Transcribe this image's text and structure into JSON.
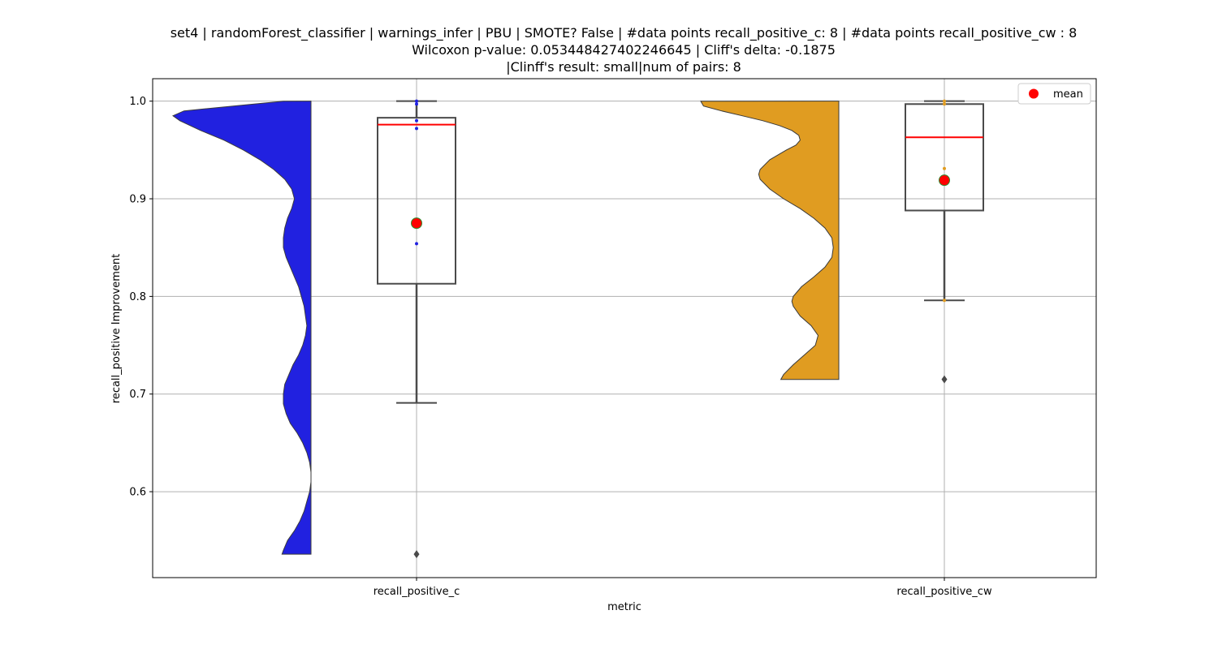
{
  "chart_data": {
    "type": "violin-box",
    "title_lines": [
      "set4 | randomForest_classifier | warnings_infer | PBU | SMOTE? False | #data points recall_positive_c: 8 | #data points recall_positive_cw : 8",
      "Wilcoxon p-value: 0.053448427402246645 | Cliff's delta: -0.1875",
      "|Clinff's result: small|num of pairs: 8"
    ],
    "xlabel": "metric",
    "ylabel": "recall_positive Improvement",
    "ylim": [
      0.512,
      1.023
    ],
    "y_ticks": [
      0.6,
      0.7,
      0.8,
      0.9,
      1.0
    ],
    "y_tick_labels": [
      "0.6",
      "0.7",
      "0.8",
      "0.9",
      "1.0"
    ],
    "grid": true,
    "legend": {
      "placement": "top-right",
      "entries": [
        {
          "label": "mean",
          "color": "#ff0000"
        }
      ]
    },
    "categories": [
      "recall_positive_c",
      "recall_positive_cw"
    ],
    "series": [
      {
        "name": "recall_positive_c",
        "violin_color": "#2121e0",
        "point_color": "#2121e0",
        "box": {
          "q1": 0.813,
          "median": 0.976,
          "q3": 0.983,
          "whisker_low": 0.691,
          "whisker_high": 1.0,
          "mean": 0.875,
          "outliers": [
            0.536
          ]
        },
        "points": [
          1.0,
          0.997,
          0.98,
          0.972,
          0.854
        ],
        "violin_range": [
          0.536,
          1.0
        ],
        "violin_profile": [
          [
            1.0,
            0.2
          ],
          [
            0.99,
            0.92
          ],
          [
            0.985,
            1.0
          ],
          [
            0.98,
            0.95
          ],
          [
            0.97,
            0.8
          ],
          [
            0.96,
            0.63
          ],
          [
            0.95,
            0.49
          ],
          [
            0.94,
            0.37
          ],
          [
            0.93,
            0.27
          ],
          [
            0.92,
            0.19
          ],
          [
            0.91,
            0.14
          ],
          [
            0.9,
            0.12
          ],
          [
            0.89,
            0.14
          ],
          [
            0.88,
            0.17
          ],
          [
            0.87,
            0.19
          ],
          [
            0.86,
            0.2
          ],
          [
            0.85,
            0.2
          ],
          [
            0.84,
            0.18
          ],
          [
            0.83,
            0.15
          ],
          [
            0.82,
            0.12
          ],
          [
            0.81,
            0.09
          ],
          [
            0.8,
            0.07
          ],
          [
            0.79,
            0.05
          ],
          [
            0.78,
            0.04
          ],
          [
            0.77,
            0.03
          ],
          [
            0.76,
            0.04
          ],
          [
            0.75,
            0.06
          ],
          [
            0.74,
            0.09
          ],
          [
            0.73,
            0.13
          ],
          [
            0.72,
            0.16
          ],
          [
            0.71,
            0.19
          ],
          [
            0.7,
            0.2
          ],
          [
            0.69,
            0.2
          ],
          [
            0.68,
            0.18
          ],
          [
            0.67,
            0.15
          ],
          [
            0.66,
            0.1
          ],
          [
            0.65,
            0.06
          ],
          [
            0.64,
            0.03
          ],
          [
            0.63,
            0.01
          ],
          [
            0.62,
            0.0
          ],
          [
            0.61,
            0.0
          ],
          [
            0.6,
            0.01
          ],
          [
            0.59,
            0.03
          ],
          [
            0.58,
            0.05
          ],
          [
            0.57,
            0.08
          ],
          [
            0.56,
            0.12
          ],
          [
            0.55,
            0.17
          ],
          [
            0.54,
            0.2
          ],
          [
            0.536,
            0.21
          ]
        ]
      },
      {
        "name": "recall_positive_cw",
        "violin_color": "#e09c21",
        "point_color": "#e09c21",
        "box": {
          "q1": 0.888,
          "median": 0.963,
          "q3": 0.997,
          "whisker_low": 0.796,
          "whisker_high": 1.0,
          "mean": 0.919,
          "outliers": [
            0.715
          ]
        },
        "points": [
          1.0,
          0.997,
          0.931,
          0.796
        ],
        "violin_range": [
          0.715,
          1.0
        ],
        "violin_profile": [
          [
            1.0,
            1.0
          ],
          [
            0.995,
            0.98
          ],
          [
            0.99,
            0.85
          ],
          [
            0.985,
            0.7
          ],
          [
            0.98,
            0.55
          ],
          [
            0.975,
            0.43
          ],
          [
            0.97,
            0.34
          ],
          [
            0.965,
            0.29
          ],
          [
            0.96,
            0.28
          ],
          [
            0.955,
            0.31
          ],
          [
            0.95,
            0.38
          ],
          [
            0.94,
            0.5
          ],
          [
            0.93,
            0.57
          ],
          [
            0.925,
            0.58
          ],
          [
            0.92,
            0.57
          ],
          [
            0.91,
            0.5
          ],
          [
            0.9,
            0.4
          ],
          [
            0.89,
            0.28
          ],
          [
            0.88,
            0.18
          ],
          [
            0.87,
            0.1
          ],
          [
            0.86,
            0.05
          ],
          [
            0.85,
            0.04
          ],
          [
            0.84,
            0.05
          ],
          [
            0.83,
            0.1
          ],
          [
            0.82,
            0.18
          ],
          [
            0.81,
            0.27
          ],
          [
            0.8,
            0.33
          ],
          [
            0.795,
            0.34
          ],
          [
            0.79,
            0.33
          ],
          [
            0.78,
            0.28
          ],
          [
            0.77,
            0.2
          ],
          [
            0.76,
            0.15
          ],
          [
            0.75,
            0.17
          ],
          [
            0.74,
            0.25
          ],
          [
            0.73,
            0.33
          ],
          [
            0.72,
            0.4
          ],
          [
            0.715,
            0.42
          ]
        ]
      }
    ]
  }
}
